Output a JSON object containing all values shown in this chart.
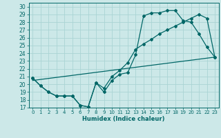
{
  "xlabel": "Humidex (Indice chaleur)",
  "bg_color": "#cce8e8",
  "line_color": "#006666",
  "grid_color": "#aad4d4",
  "xlim": [
    -0.5,
    23.5
  ],
  "ylim": [
    17,
    30.5
  ],
  "xticks": [
    0,
    1,
    2,
    3,
    4,
    5,
    6,
    7,
    8,
    9,
    10,
    11,
    12,
    13,
    14,
    15,
    16,
    17,
    18,
    19,
    20,
    21,
    22,
    23
  ],
  "yticks": [
    17,
    18,
    19,
    20,
    21,
    22,
    23,
    24,
    25,
    26,
    27,
    28,
    29,
    30
  ],
  "line1_x": [
    0,
    1,
    2,
    3,
    4,
    5,
    6,
    7,
    8,
    9,
    10,
    11,
    12,
    13,
    14,
    15,
    16,
    17,
    18,
    19,
    20,
    21,
    22,
    23
  ],
  "line1_y": [
    20.8,
    19.8,
    19.0,
    18.5,
    18.5,
    18.5,
    17.3,
    17.1,
    20.2,
    19.0,
    20.5,
    21.3,
    21.5,
    23.8,
    28.8,
    29.2,
    29.2,
    29.5,
    29.5,
    28.2,
    28.0,
    26.5,
    24.8,
    23.5
  ],
  "line2_x": [
    0,
    1,
    2,
    3,
    4,
    5,
    6,
    7,
    8,
    9,
    10,
    11,
    12,
    13,
    14,
    15,
    16,
    17,
    18,
    19,
    20,
    21,
    22,
    23
  ],
  "line2_y": [
    20.8,
    19.8,
    19.0,
    18.5,
    18.5,
    18.5,
    17.3,
    17.1,
    20.2,
    19.5,
    21.0,
    21.8,
    22.8,
    24.5,
    25.2,
    25.8,
    26.5,
    27.0,
    27.5,
    28.0,
    28.5,
    29.0,
    28.5,
    23.5
  ],
  "line3_x": [
    0,
    23
  ],
  "line3_y": [
    20.5,
    23.5
  ]
}
